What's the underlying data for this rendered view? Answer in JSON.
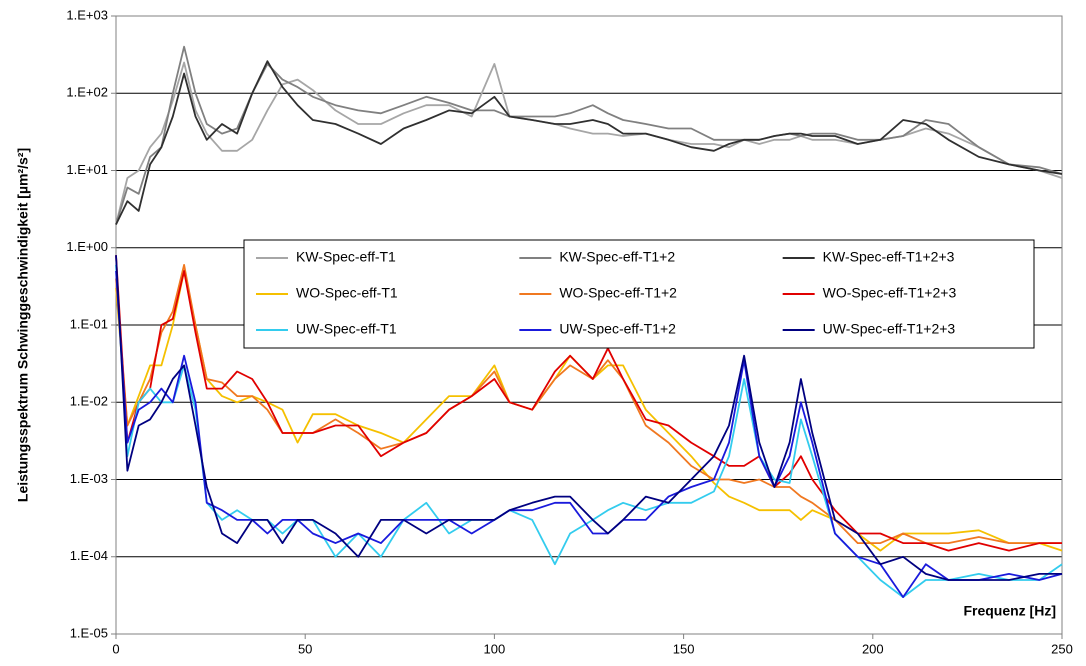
{
  "chart_data": {
    "type": "line",
    "y_label": "Leistungsspektrum Schwinggeschwindigkeit [µm²/s²]",
    "x_annotation": "Frequenz [Hz]",
    "log_y": true,
    "grid": true,
    "legend": "center",
    "xlim": [
      0,
      250
    ],
    "xticks": [
      0,
      50,
      100,
      150,
      200,
      250
    ],
    "ylim": [
      1e-05,
      1000
    ],
    "yticks": [
      {
        "value": 1e-05,
        "label": "1.E-05"
      },
      {
        "value": 0.0001,
        "label": "1.E-04"
      },
      {
        "value": 0.001,
        "label": "1.E-03"
      },
      {
        "value": 0.01,
        "label": "1.E-02"
      },
      {
        "value": 0.1,
        "label": "1.E-01"
      },
      {
        "value": 1,
        "label": "1.E+00"
      },
      {
        "value": 10,
        "label": "1.E+01"
      },
      {
        "value": 100,
        "label": "1.E+02"
      },
      {
        "value": 1000,
        "label": "1.E+03"
      }
    ],
    "x": [
      0,
      3,
      6,
      9,
      12,
      15,
      18,
      21,
      24,
      28,
      32,
      36,
      40,
      44,
      48,
      52,
      58,
      64,
      70,
      76,
      82,
      88,
      94,
      100,
      104,
      110,
      116,
      120,
      126,
      130,
      134,
      140,
      146,
      152,
      158,
      162,
      166,
      170,
      174,
      178,
      181,
      184,
      190,
      196,
      202,
      208,
      214,
      220,
      228,
      236,
      244,
      250
    ],
    "series": [
      {
        "name": "KW-Spec-eff-T1",
        "color": "#a6a6a6",
        "values": [
          2,
          8,
          10,
          20,
          30,
          80,
          250,
          60,
          30,
          18,
          18,
          25,
          60,
          130,
          150,
          110,
          60,
          40,
          40,
          55,
          70,
          70,
          50,
          240,
          50,
          45,
          40,
          35,
          30,
          30,
          28,
          30,
          25,
          22,
          22,
          20,
          25,
          22,
          25,
          25,
          28,
          25,
          25,
          22,
          25,
          28,
          35,
          30,
          20,
          12,
          10,
          8
        ]
      },
      {
        "name": "KW-Spec-eff-T1+2",
        "color": "#808080",
        "values": [
          2,
          6,
          5,
          15,
          20,
          100,
          400,
          100,
          40,
          30,
          35,
          100,
          240,
          150,
          120,
          90,
          70,
          60,
          55,
          70,
          90,
          75,
          60,
          60,
          50,
          50,
          50,
          55,
          70,
          55,
          45,
          40,
          35,
          35,
          25,
          25,
          25,
          25,
          28,
          30,
          28,
          30,
          30,
          25,
          25,
          28,
          45,
          40,
          20,
          12,
          11,
          9
        ]
      },
      {
        "name": "KW-Spec-eff-T1+2+3",
        "color": "#303030",
        "values": [
          2,
          4,
          3,
          12,
          20,
          50,
          180,
          50,
          25,
          40,
          30,
          100,
          260,
          120,
          70,
          45,
          40,
          30,
          22,
          35,
          45,
          60,
          55,
          90,
          50,
          45,
          40,
          40,
          45,
          40,
          30,
          30,
          25,
          20,
          18,
          22,
          25,
          25,
          28,
          30,
          30,
          28,
          28,
          22,
          25,
          45,
          40,
          25,
          15,
          12,
          10,
          9
        ]
      },
      {
        "name": "WO-Spec-eff-T1",
        "color": "#f5c000",
        "values": [
          0.3,
          0.005,
          0.012,
          0.03,
          0.03,
          0.1,
          0.5,
          0.1,
          0.02,
          0.012,
          0.01,
          0.012,
          0.01,
          0.008,
          0.003,
          0.007,
          0.007,
          0.005,
          0.004,
          0.003,
          0.006,
          0.012,
          0.012,
          0.03,
          0.01,
          0.008,
          0.02,
          0.04,
          0.02,
          0.03,
          0.03,
          0.008,
          0.004,
          0.002,
          0.0009,
          0.0006,
          0.0005,
          0.0004,
          0.0004,
          0.0004,
          0.0003,
          0.0004,
          0.0003,
          0.0002,
          0.00012,
          0.0002,
          0.0002,
          0.0002,
          0.00022,
          0.00015,
          0.00015,
          0.00012
        ]
      },
      {
        "name": "WO-Spec-eff-T1+2",
        "color": "#f07820",
        "values": [
          0.4,
          0.005,
          0.01,
          0.02,
          0.08,
          0.15,
          0.6,
          0.1,
          0.02,
          0.018,
          0.012,
          0.012,
          0.008,
          0.004,
          0.004,
          0.004,
          0.006,
          0.004,
          0.0025,
          0.003,
          0.004,
          0.008,
          0.012,
          0.025,
          0.01,
          0.008,
          0.02,
          0.03,
          0.02,
          0.035,
          0.02,
          0.005,
          0.003,
          0.0015,
          0.001,
          0.001,
          0.0009,
          0.001,
          0.0008,
          0.0008,
          0.0006,
          0.0005,
          0.0003,
          0.00015,
          0.00015,
          0.0002,
          0.00015,
          0.00015,
          0.00018,
          0.00015,
          0.00015,
          0.00015
        ]
      },
      {
        "name": "WO-Spec-eff-T1+2+3",
        "color": "#e00000",
        "values": [
          0.8,
          0.003,
          0.01,
          0.015,
          0.1,
          0.12,
          0.5,
          0.08,
          0.015,
          0.015,
          0.025,
          0.02,
          0.01,
          0.004,
          0.004,
          0.004,
          0.005,
          0.005,
          0.002,
          0.003,
          0.004,
          0.008,
          0.012,
          0.02,
          0.01,
          0.008,
          0.025,
          0.04,
          0.02,
          0.05,
          0.02,
          0.006,
          0.005,
          0.003,
          0.002,
          0.0015,
          0.0015,
          0.002,
          0.0008,
          0.0012,
          0.002,
          0.001,
          0.0004,
          0.0002,
          0.0002,
          0.00015,
          0.00015,
          0.00012,
          0.00015,
          0.00012,
          0.00015,
          0.00015
        ]
      },
      {
        "name": "UW-Spec-eff-T1",
        "color": "#33ccee",
        "values": [
          0.6,
          0.002,
          0.01,
          0.015,
          0.01,
          0.01,
          0.03,
          0.008,
          0.0005,
          0.0003,
          0.0004,
          0.0003,
          0.0003,
          0.0002,
          0.0003,
          0.0003,
          0.0001,
          0.0002,
          0.0001,
          0.0003,
          0.0005,
          0.0002,
          0.0003,
          0.0003,
          0.0004,
          0.0003,
          8e-05,
          0.0002,
          0.0003,
          0.0004,
          0.0005,
          0.0004,
          0.0005,
          0.0005,
          0.0007,
          0.002,
          0.02,
          0.002,
          0.001,
          0.0009,
          0.006,
          0.002,
          0.0002,
          0.0001,
          5e-05,
          3e-05,
          5e-05,
          5e-05,
          6e-05,
          5e-05,
          5e-05,
          8e-05
        ]
      },
      {
        "name": "UW-Spec-eff-T1+2",
        "color": "#1a1adc",
        "values": [
          0.5,
          0.003,
          0.008,
          0.01,
          0.015,
          0.01,
          0.04,
          0.01,
          0.0005,
          0.0004,
          0.0003,
          0.0003,
          0.0002,
          0.0003,
          0.0003,
          0.0002,
          0.00015,
          0.0002,
          0.00015,
          0.0003,
          0.0003,
          0.0003,
          0.0002,
          0.0003,
          0.0004,
          0.0004,
          0.0005,
          0.0005,
          0.0002,
          0.0002,
          0.0003,
          0.0003,
          0.0006,
          0.0008,
          0.001,
          0.003,
          0.035,
          0.002,
          0.0008,
          0.002,
          0.01,
          0.003,
          0.0002,
          0.0001,
          8e-05,
          3e-05,
          8e-05,
          5e-05,
          5e-05,
          6e-05,
          5e-05,
          6e-05
        ]
      },
      {
        "name": "UW-Spec-eff-T1+2+3",
        "color": "#000080",
        "values": [
          0.8,
          0.0013,
          0.005,
          0.006,
          0.01,
          0.02,
          0.03,
          0.005,
          0.0008,
          0.0002,
          0.00015,
          0.0003,
          0.0003,
          0.00015,
          0.0003,
          0.0003,
          0.0002,
          0.0001,
          0.0003,
          0.0003,
          0.0002,
          0.0003,
          0.0003,
          0.0003,
          0.0004,
          0.0005,
          0.0006,
          0.0006,
          0.0003,
          0.0002,
          0.0003,
          0.0006,
          0.0005,
          0.001,
          0.002,
          0.005,
          0.04,
          0.003,
          0.0008,
          0.003,
          0.02,
          0.004,
          0.0003,
          0.0002,
          8e-05,
          0.0001,
          6e-05,
          5e-05,
          5e-05,
          5e-05,
          6e-05,
          6e-05
        ]
      }
    ]
  }
}
